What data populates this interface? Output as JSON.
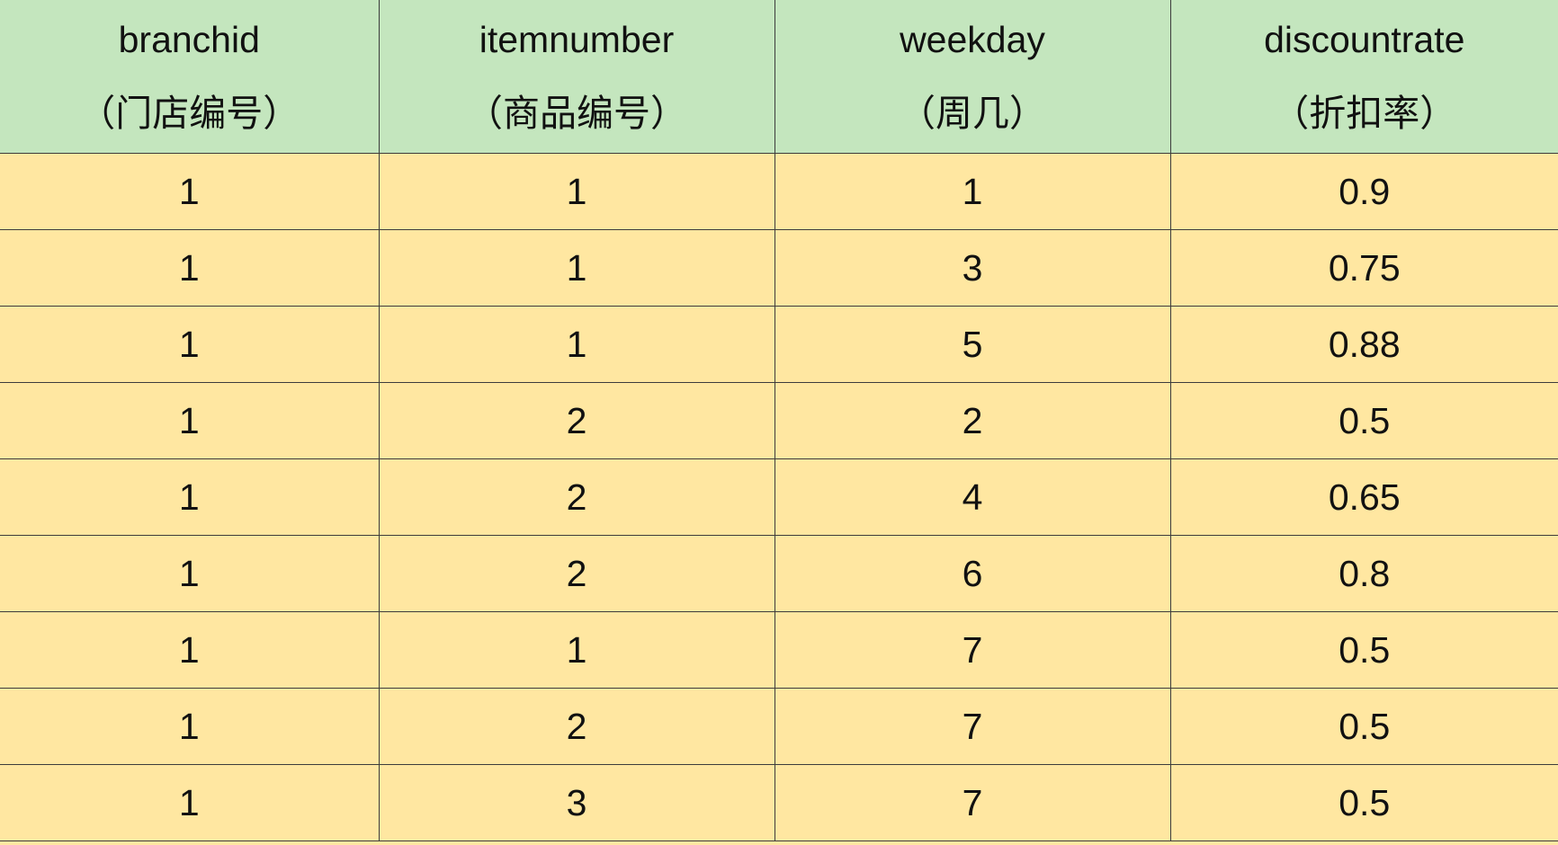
{
  "table": {
    "columns": [
      {
        "name": "branchid",
        "label": "（门店编号）"
      },
      {
        "name": "itemnumber",
        "label": "（商品编号）"
      },
      {
        "name": "weekday",
        "label": "（周几）"
      },
      {
        "name": "discountrate",
        "label": "（折扣率）"
      }
    ],
    "rows": [
      [
        "1",
        "1",
        "1",
        "0.9"
      ],
      [
        "1",
        "1",
        "3",
        "0.75"
      ],
      [
        "1",
        "1",
        "5",
        "0.88"
      ],
      [
        "1",
        "2",
        "2",
        "0.5"
      ],
      [
        "1",
        "2",
        "4",
        "0.65"
      ],
      [
        "1",
        "2",
        "6",
        "0.8"
      ],
      [
        "1",
        "1",
        "7",
        "0.5"
      ],
      [
        "1",
        "2",
        "7",
        "0.5"
      ],
      [
        "1",
        "3",
        "7",
        "0.5"
      ]
    ],
    "colors": {
      "header_bg": "#c4e6be",
      "body_bg": "#ffe7a1",
      "border": "#3c3c3c"
    }
  }
}
